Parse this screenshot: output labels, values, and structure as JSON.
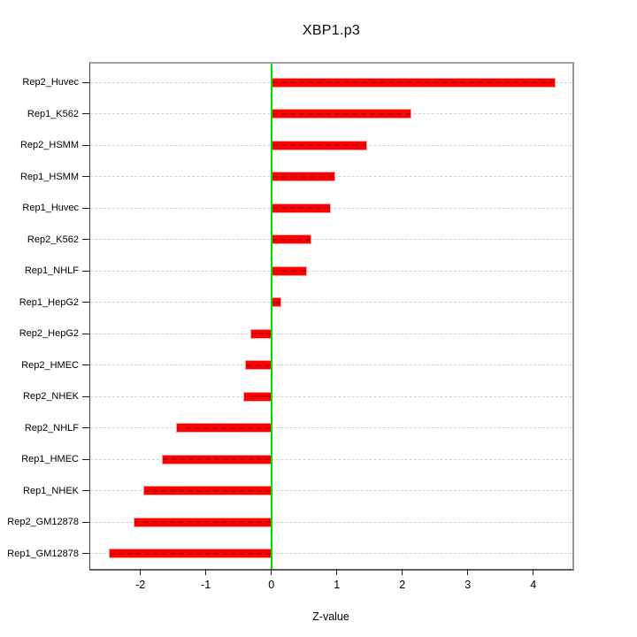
{
  "figure": {
    "title": "XBP1.p3"
  },
  "chart_data": {
    "type": "bar",
    "orientation": "horizontal",
    "title": "XBP1.p3",
    "xlabel": "Z-value",
    "ylabel": "",
    "categories": [
      "Rep2_Huvec",
      "Rep1_K562",
      "Rep2_HSMM",
      "Rep1_HSMM",
      "Rep1_Huvec",
      "Rep2_K562",
      "Rep1_NHLF",
      "Rep1_HepG2",
      "Rep2_HepG2",
      "Rep2_HMEC",
      "Rep2_NHEK",
      "Rep2_NHLF",
      "Rep1_HMEC",
      "Rep1_NHEK",
      "Rep2_GM12878",
      "Rep1_GM12878"
    ],
    "values": [
      4.34,
      2.14,
      1.47,
      0.98,
      0.91,
      0.61,
      0.54,
      0.15,
      -0.32,
      -0.4,
      -0.43,
      -1.45,
      -1.67,
      -1.95,
      -2.11,
      -2.48
    ],
    "xlim": [
      -2.75,
      4.62
    ],
    "xticks": [
      -2,
      -1,
      0,
      1,
      2,
      3,
      4
    ],
    "grid": "horizontal dashed line per category row",
    "zero_reference_line": 0,
    "legend": null,
    "colors": {
      "bar_fill": "#fb0202",
      "bar_border": "#ff9d9d",
      "bar_center_dash": "#8b0000",
      "zero_line": "#00de00",
      "gridline": "#d4d4d4",
      "frame": "#9a9a9a",
      "text": "#000000",
      "background": "#ffffff"
    }
  }
}
